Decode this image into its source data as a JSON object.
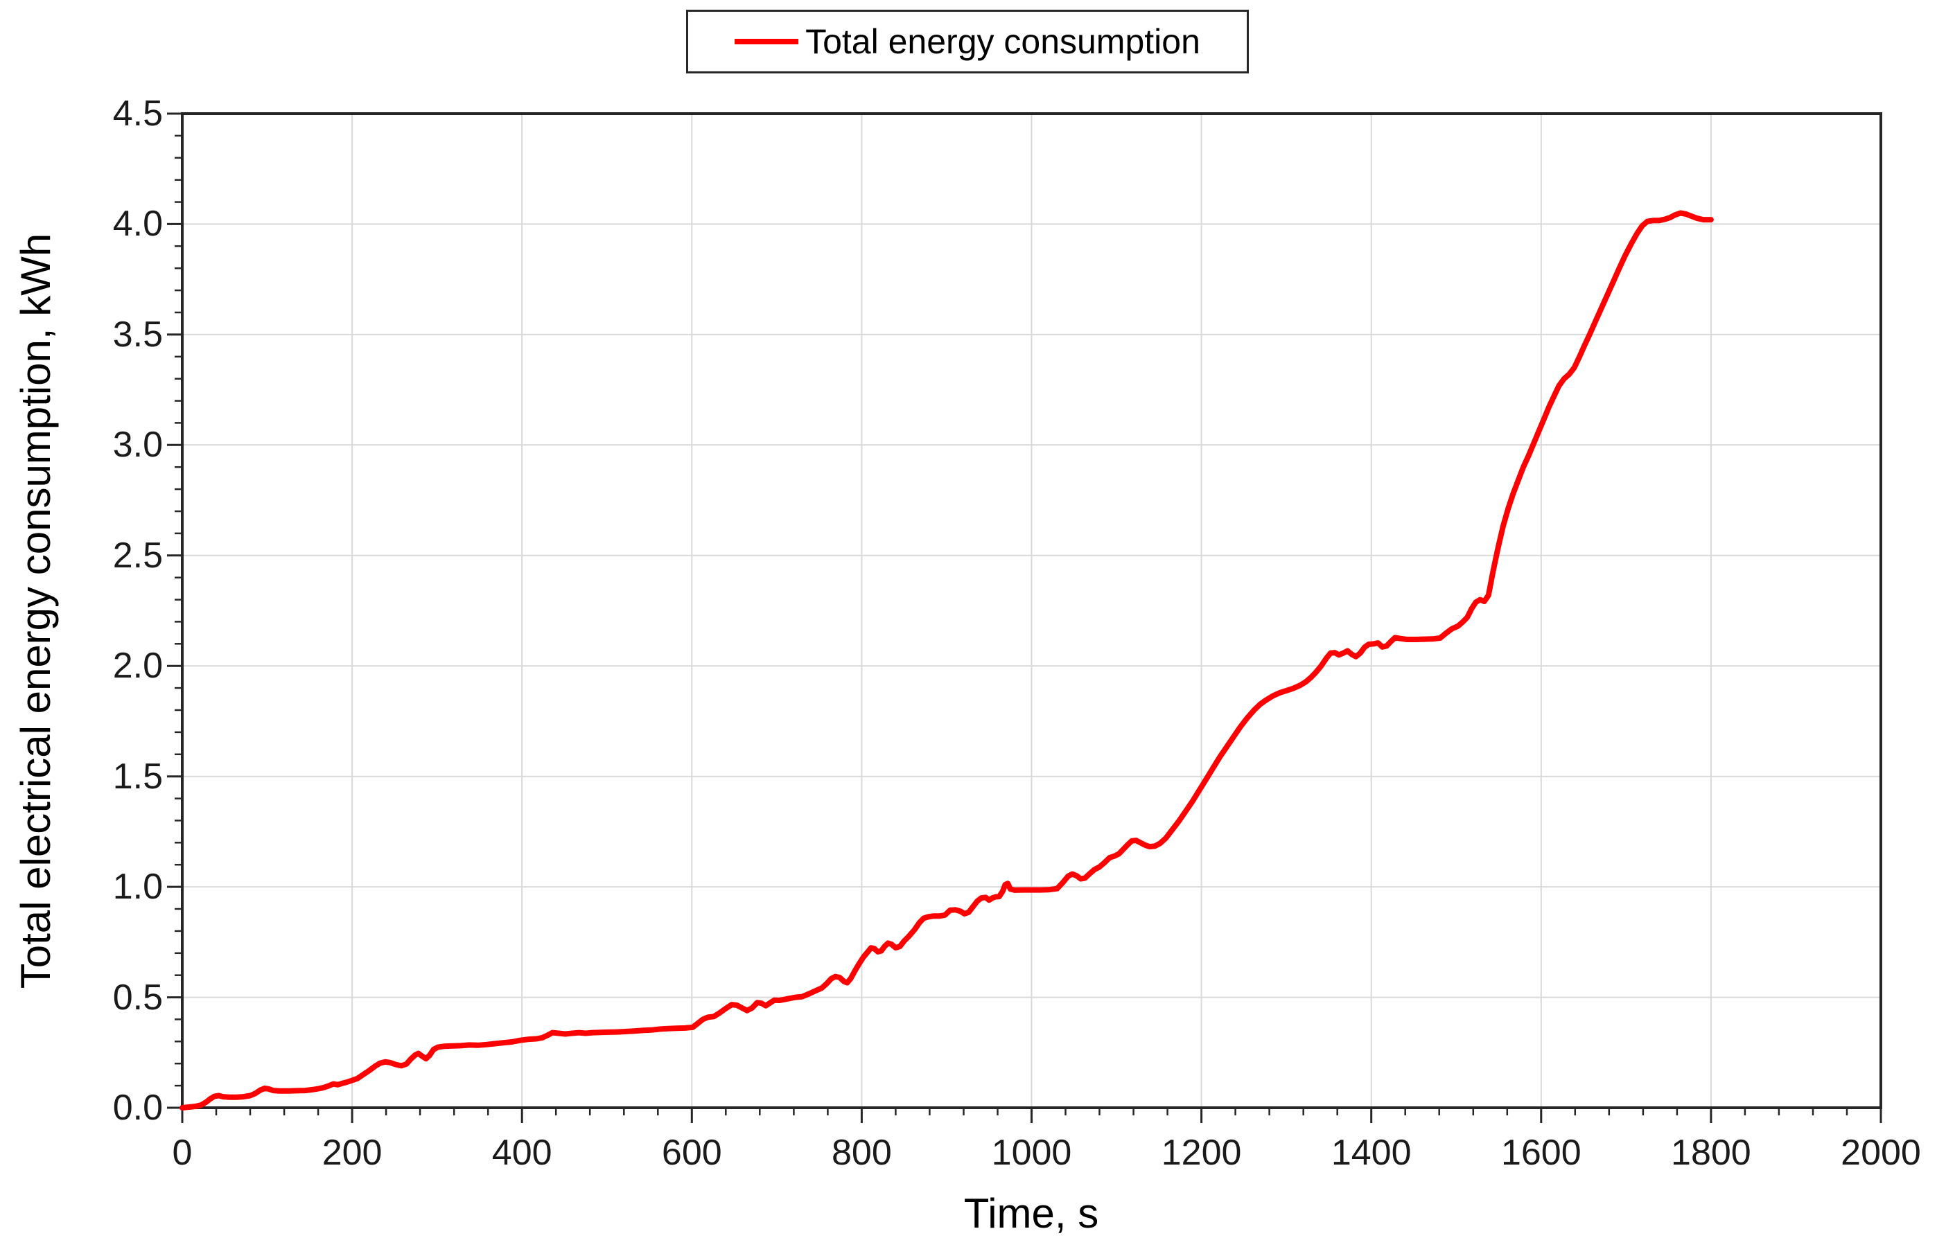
{
  "chart_data": {
    "type": "line",
    "title": "",
    "legend": [
      "Total energy consumption"
    ],
    "legend_position": "top-center-boxed",
    "xlabel": "Time, s",
    "ylabel": "Total electrical energy consumption, kWh",
    "xlim": [
      0,
      2000
    ],
    "ylim": [
      0,
      4.5
    ],
    "x_major_unit": 200,
    "x_minor_unit": 40,
    "y_major_unit": 0.5,
    "y_minor_unit": 0.1,
    "grid": "major-both",
    "x_tick_labels": [
      "0",
      "200",
      "400",
      "600",
      "800",
      "1000",
      "1200",
      "1400",
      "1600",
      "1800",
      "2000"
    ],
    "y_tick_labels": [
      "0.0",
      "0.5",
      "1.0",
      "1.5",
      "2.0",
      "2.5",
      "3.0",
      "3.5",
      "4.0",
      "4.5"
    ],
    "colors": {
      "line": "#ff0000",
      "grid": "#d9d9d9",
      "axis": "#262626",
      "text": "#1a1a1a",
      "background": "#ffffff"
    },
    "series": [
      {
        "name": "Total energy consumption",
        "points": [
          [
            0,
            0
          ],
          [
            8,
            0.003
          ],
          [
            15,
            0.006
          ],
          [
            22,
            0.012
          ],
          [
            28,
            0.025
          ],
          [
            33,
            0.04
          ],
          [
            38,
            0.052
          ],
          [
            43,
            0.055
          ],
          [
            48,
            0.05
          ],
          [
            56,
            0.048
          ],
          [
            64,
            0.048
          ],
          [
            72,
            0.05
          ],
          [
            80,
            0.055
          ],
          [
            86,
            0.065
          ],
          [
            92,
            0.08
          ],
          [
            97,
            0.088
          ],
          [
            102,
            0.085
          ],
          [
            107,
            0.078
          ],
          [
            115,
            0.076
          ],
          [
            125,
            0.076
          ],
          [
            135,
            0.077
          ],
          [
            145,
            0.078
          ],
          [
            153,
            0.082
          ],
          [
            160,
            0.086
          ],
          [
            167,
            0.092
          ],
          [
            173,
            0.1
          ],
          [
            178,
            0.108
          ],
          [
            183,
            0.104
          ],
          [
            188,
            0.11
          ],
          [
            194,
            0.116
          ],
          [
            200,
            0.124
          ],
          [
            206,
            0.132
          ],
          [
            213,
            0.15
          ],
          [
            220,
            0.168
          ],
          [
            227,
            0.188
          ],
          [
            233,
            0.202
          ],
          [
            239,
            0.208
          ],
          [
            245,
            0.204
          ],
          [
            251,
            0.196
          ],
          [
            258,
            0.19
          ],
          [
            264,
            0.198
          ],
          [
            269,
            0.22
          ],
          [
            274,
            0.238
          ],
          [
            278,
            0.246
          ],
          [
            283,
            0.232
          ],
          [
            287,
            0.222
          ],
          [
            291,
            0.236
          ],
          [
            296,
            0.264
          ],
          [
            301,
            0.274
          ],
          [
            308,
            0.278
          ],
          [
            318,
            0.28
          ],
          [
            328,
            0.281
          ],
          [
            338,
            0.284
          ],
          [
            348,
            0.283
          ],
          [
            358,
            0.286
          ],
          [
            368,
            0.29
          ],
          [
            378,
            0.294
          ],
          [
            388,
            0.298
          ],
          [
            398,
            0.305
          ],
          [
            408,
            0.31
          ],
          [
            417,
            0.312
          ],
          [
            424,
            0.317
          ],
          [
            430,
            0.328
          ],
          [
            436,
            0.34
          ],
          [
            443,
            0.337
          ],
          [
            451,
            0.334
          ],
          [
            459,
            0.337
          ],
          [
            467,
            0.34
          ],
          [
            475,
            0.337
          ],
          [
            483,
            0.34
          ],
          [
            492,
            0.341
          ],
          [
            502,
            0.342
          ],
          [
            512,
            0.343
          ],
          [
            522,
            0.345
          ],
          [
            532,
            0.347
          ],
          [
            542,
            0.35
          ],
          [
            552,
            0.352
          ],
          [
            562,
            0.356
          ],
          [
            572,
            0.358
          ],
          [
            582,
            0.36
          ],
          [
            592,
            0.361
          ],
          [
            601,
            0.364
          ],
          [
            607,
            0.382
          ],
          [
            613,
            0.4
          ],
          [
            619,
            0.41
          ],
          [
            626,
            0.413
          ],
          [
            633,
            0.43
          ],
          [
            641,
            0.452
          ],
          [
            647,
            0.467
          ],
          [
            653,
            0.464
          ],
          [
            659,
            0.452
          ],
          [
            665,
            0.44
          ],
          [
            671,
            0.452
          ],
          [
            677,
            0.476
          ],
          [
            682,
            0.473
          ],
          [
            687,
            0.462
          ],
          [
            692,
            0.474
          ],
          [
            697,
            0.487
          ],
          [
            703,
            0.486
          ],
          [
            709,
            0.49
          ],
          [
            715,
            0.495
          ],
          [
            722,
            0.5
          ],
          [
            730,
            0.503
          ],
          [
            738,
            0.516
          ],
          [
            746,
            0.53
          ],
          [
            753,
            0.542
          ],
          [
            759,
            0.563
          ],
          [
            764,
            0.584
          ],
          [
            769,
            0.594
          ],
          [
            774,
            0.59
          ],
          [
            779,
            0.572
          ],
          [
            783,
            0.566
          ],
          [
            787,
            0.585
          ],
          [
            792,
            0.62
          ],
          [
            797,
            0.652
          ],
          [
            802,
            0.682
          ],
          [
            807,
            0.705
          ],
          [
            811,
            0.724
          ],
          [
            815,
            0.72
          ],
          [
            819,
            0.706
          ],
          [
            823,
            0.71
          ],
          [
            827,
            0.731
          ],
          [
            831,
            0.745
          ],
          [
            835,
            0.74
          ],
          [
            840,
            0.724
          ],
          [
            845,
            0.73
          ],
          [
            850,
            0.755
          ],
          [
            856,
            0.778
          ],
          [
            862,
            0.805
          ],
          [
            868,
            0.838
          ],
          [
            873,
            0.858
          ],
          [
            878,
            0.864
          ],
          [
            885,
            0.868
          ],
          [
            892,
            0.868
          ],
          [
            898,
            0.872
          ],
          [
            904,
            0.894
          ],
          [
            910,
            0.896
          ],
          [
            916,
            0.89
          ],
          [
            921,
            0.878
          ],
          [
            926,
            0.885
          ],
          [
            931,
            0.91
          ],
          [
            936,
            0.935
          ],
          [
            941,
            0.95
          ],
          [
            946,
            0.952
          ],
          [
            950,
            0.94
          ],
          [
            954,
            0.95
          ],
          [
            958,
            0.955
          ],
          [
            962,
            0.956
          ],
          [
            966,
            0.98
          ],
          [
            969,
            1.01
          ],
          [
            972,
            1.015
          ],
          [
            975,
            0.99
          ],
          [
            980,
            0.985
          ],
          [
            990,
            0.986
          ],
          [
            1000,
            0.986
          ],
          [
            1010,
            0.986
          ],
          [
            1020,
            0.987
          ],
          [
            1030,
            0.992
          ],
          [
            1037,
            1.02
          ],
          [
            1043,
            1.048
          ],
          [
            1048,
            1.058
          ],
          [
            1053,
            1.05
          ],
          [
            1058,
            1.036
          ],
          [
            1063,
            1.04
          ],
          [
            1068,
            1.058
          ],
          [
            1074,
            1.078
          ],
          [
            1080,
            1.09
          ],
          [
            1086,
            1.11
          ],
          [
            1092,
            1.132
          ],
          [
            1098,
            1.14
          ],
          [
            1103,
            1.15
          ],
          [
            1108,
            1.17
          ],
          [
            1113,
            1.19
          ],
          [
            1118,
            1.208
          ],
          [
            1123,
            1.21
          ],
          [
            1128,
            1.2
          ],
          [
            1133,
            1.19
          ],
          [
            1139,
            1.182
          ],
          [
            1145,
            1.184
          ],
          [
            1151,
            1.196
          ],
          [
            1158,
            1.22
          ],
          [
            1166,
            1.26
          ],
          [
            1174,
            1.3
          ],
          [
            1182,
            1.345
          ],
          [
            1190,
            1.39
          ],
          [
            1198,
            1.44
          ],
          [
            1206,
            1.49
          ],
          [
            1214,
            1.54
          ],
          [
            1222,
            1.59
          ],
          [
            1230,
            1.635
          ],
          [
            1238,
            1.68
          ],
          [
            1246,
            1.725
          ],
          [
            1254,
            1.765
          ],
          [
            1262,
            1.8
          ],
          [
            1269,
            1.826
          ],
          [
            1276,
            1.845
          ],
          [
            1284,
            1.864
          ],
          [
            1292,
            1.878
          ],
          [
            1300,
            1.888
          ],
          [
            1308,
            1.898
          ],
          [
            1316,
            1.912
          ],
          [
            1323,
            1.928
          ],
          [
            1329,
            1.948
          ],
          [
            1335,
            1.972
          ],
          [
            1341,
            2.0
          ],
          [
            1347,
            2.034
          ],
          [
            1352,
            2.058
          ],
          [
            1357,
            2.06
          ],
          [
            1362,
            2.05
          ],
          [
            1367,
            2.058
          ],
          [
            1372,
            2.068
          ],
          [
            1377,
            2.052
          ],
          [
            1382,
            2.042
          ],
          [
            1387,
            2.058
          ],
          [
            1392,
            2.084
          ],
          [
            1397,
            2.098
          ],
          [
            1403,
            2.1
          ],
          [
            1408,
            2.104
          ],
          [
            1413,
            2.086
          ],
          [
            1418,
            2.09
          ],
          [
            1423,
            2.11
          ],
          [
            1428,
            2.128
          ],
          [
            1434,
            2.124
          ],
          [
            1442,
            2.12
          ],
          [
            1452,
            2.12
          ],
          [
            1462,
            2.121
          ],
          [
            1472,
            2.122
          ],
          [
            1481,
            2.126
          ],
          [
            1488,
            2.148
          ],
          [
            1495,
            2.168
          ],
          [
            1502,
            2.18
          ],
          [
            1508,
            2.2
          ],
          [
            1513,
            2.22
          ],
          [
            1518,
            2.258
          ],
          [
            1523,
            2.288
          ],
          [
            1528,
            2.3
          ],
          [
            1533,
            2.292
          ],
          [
            1538,
            2.32
          ],
          [
            1543,
            2.42
          ],
          [
            1549,
            2.53
          ],
          [
            1555,
            2.63
          ],
          [
            1561,
            2.71
          ],
          [
            1567,
            2.78
          ],
          [
            1573,
            2.84
          ],
          [
            1579,
            2.9
          ],
          [
            1585,
            2.95
          ],
          [
            1591,
            3.005
          ],
          [
            1597,
            3.06
          ],
          [
            1603,
            3.115
          ],
          [
            1609,
            3.17
          ],
          [
            1615,
            3.22
          ],
          [
            1621,
            3.268
          ],
          [
            1627,
            3.3
          ],
          [
            1633,
            3.32
          ],
          [
            1639,
            3.35
          ],
          [
            1645,
            3.398
          ],
          [
            1651,
            3.45
          ],
          [
            1657,
            3.5
          ],
          [
            1664,
            3.56
          ],
          [
            1671,
            3.62
          ],
          [
            1678,
            3.68
          ],
          [
            1685,
            3.74
          ],
          [
            1692,
            3.8
          ],
          [
            1699,
            3.858
          ],
          [
            1706,
            3.91
          ],
          [
            1713,
            3.958
          ],
          [
            1719,
            3.992
          ],
          [
            1725,
            4.012
          ],
          [
            1732,
            4.016
          ],
          [
            1739,
            4.016
          ],
          [
            1746,
            4.022
          ],
          [
            1752,
            4.03
          ],
          [
            1758,
            4.042
          ],
          [
            1764,
            4.05
          ],
          [
            1770,
            4.046
          ],
          [
            1777,
            4.036
          ],
          [
            1784,
            4.026
          ],
          [
            1791,
            4.02
          ],
          [
            1800,
            4.02
          ]
        ]
      }
    ]
  }
}
